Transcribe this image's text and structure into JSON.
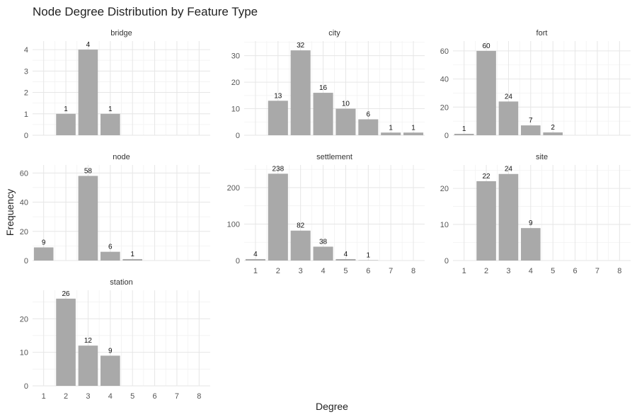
{
  "chart_data": {
    "type": "bar",
    "title": "Node Degree Distribution by Feature Type",
    "xlabel": "Degree",
    "ylabel": "Frequency",
    "x_ticks": [
      "1",
      "2",
      "3",
      "4",
      "5",
      "6",
      "7",
      "8"
    ],
    "grid": true,
    "bar_color": "#a9a9a9",
    "facets": [
      {
        "name": "bridge",
        "ylim": [
          0,
          4.4
        ],
        "y_ticks": [
          0,
          1,
          2,
          3,
          4
        ],
        "bars": [
          {
            "x": 2,
            "value": 1,
            "label": "1"
          },
          {
            "x": 3,
            "value": 4,
            "label": "4"
          },
          {
            "x": 4,
            "value": 1,
            "label": "1"
          }
        ]
      },
      {
        "name": "city",
        "ylim": [
          0,
          35.5
        ],
        "y_ticks": [
          0,
          10,
          20,
          30
        ],
        "bars": [
          {
            "x": 2,
            "value": 13,
            "label": "13"
          },
          {
            "x": 3,
            "value": 32,
            "label": "32"
          },
          {
            "x": 4,
            "value": 16,
            "label": "16"
          },
          {
            "x": 5,
            "value": 10,
            "label": "10"
          },
          {
            "x": 6,
            "value": 6,
            "label": "6"
          },
          {
            "x": 7,
            "value": 1,
            "label": "1"
          },
          {
            "x": 8,
            "value": 1,
            "label": "1"
          }
        ]
      },
      {
        "name": "fort",
        "ylim": [
          0,
          67
        ],
        "y_ticks": [
          0,
          20,
          40,
          60
        ],
        "bars": [
          {
            "x": 1,
            "value": 1,
            "label": "1"
          },
          {
            "x": 2,
            "value": 60,
            "label": "60"
          },
          {
            "x": 3,
            "value": 24,
            "label": "24"
          },
          {
            "x": 4,
            "value": 7,
            "label": "7"
          },
          {
            "x": 5,
            "value": 2,
            "label": "2"
          }
        ]
      },
      {
        "name": "node",
        "ylim": [
          0,
          65.5
        ],
        "y_ticks": [
          0,
          20,
          40,
          60
        ],
        "bars": [
          {
            "x": 1,
            "value": 9,
            "label": "9"
          },
          {
            "x": 3,
            "value": 58,
            "label": "58"
          },
          {
            "x": 4,
            "value": 6,
            "label": "6"
          },
          {
            "x": 5,
            "value": 1,
            "label": "1"
          }
        ]
      },
      {
        "name": "settlement",
        "ylim": [
          0,
          262
        ],
        "y_ticks": [
          0,
          100,
          200
        ],
        "bars": [
          {
            "x": 1,
            "value": 4,
            "label": "4"
          },
          {
            "x": 2,
            "value": 238,
            "label": "238"
          },
          {
            "x": 3,
            "value": 82,
            "label": "82"
          },
          {
            "x": 4,
            "value": 38,
            "label": "38"
          },
          {
            "x": 5,
            "value": 4,
            "label": "4"
          },
          {
            "x": 6,
            "value": 1,
            "label": "1"
          }
        ]
      },
      {
        "name": "site",
        "ylim": [
          0,
          26.5
        ],
        "y_ticks": [
          0,
          10,
          20
        ],
        "bars": [
          {
            "x": 2,
            "value": 22,
            "label": "22"
          },
          {
            "x": 3,
            "value": 24,
            "label": "24"
          },
          {
            "x": 4,
            "value": 9,
            "label": "9"
          }
        ]
      },
      {
        "name": "station",
        "ylim": [
          0,
          28.5
        ],
        "y_ticks": [
          0,
          10,
          20
        ],
        "bars": [
          {
            "x": 2,
            "value": 26,
            "label": "26"
          },
          {
            "x": 3,
            "value": 12,
            "label": "12"
          },
          {
            "x": 4,
            "value": 9,
            "label": "9"
          }
        ]
      }
    ]
  }
}
